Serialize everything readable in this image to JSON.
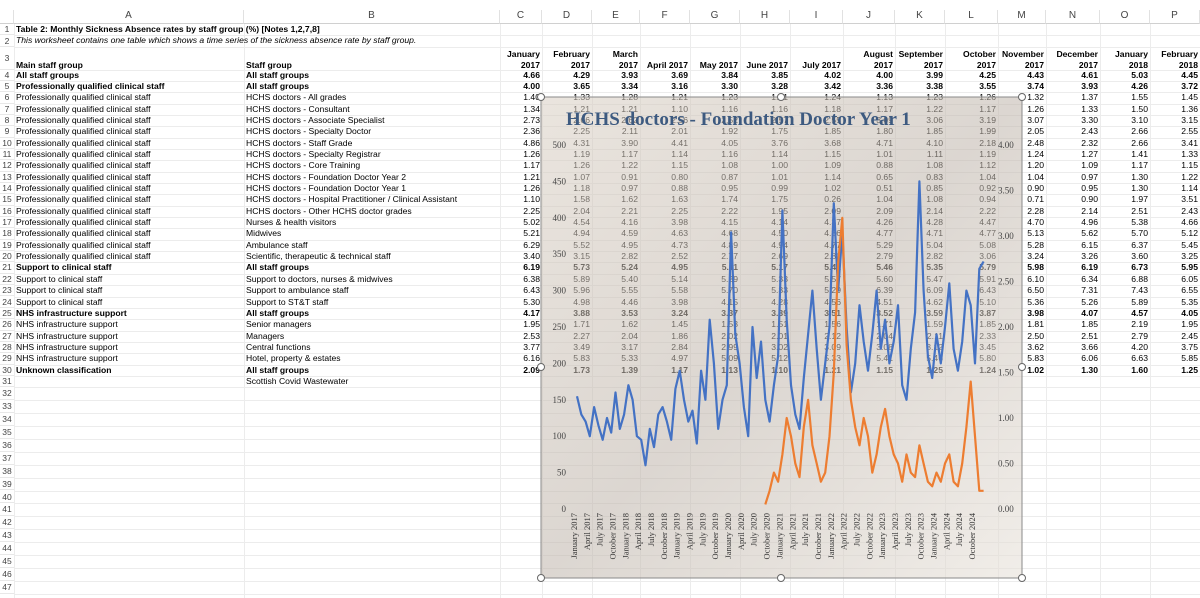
{
  "sheet": {
    "columns": [
      "A",
      "B",
      "C",
      "D",
      "E",
      "F",
      "G",
      "H",
      "I",
      "J",
      "K",
      "L",
      "M",
      "N",
      "O",
      "P"
    ],
    "row_numbers": [
      1,
      2,
      3,
      4,
      5,
      6,
      7,
      8,
      9,
      10,
      11,
      12,
      13,
      14,
      15,
      16,
      17,
      18,
      19,
      20,
      21,
      22,
      23,
      24,
      25,
      26,
      27,
      28,
      29,
      30,
      31,
      32,
      33,
      34,
      35,
      36,
      37,
      38,
      39,
      40,
      41,
      42,
      43,
      44,
      45,
      46,
      47
    ],
    "title": "Table 2: Monthly Sickness Absence rates by staff group (%) [Notes 1,2,7,8]",
    "subtitle": "This worksheet contains one table which shows a time series of the sickness absence rate by staff group.",
    "headers": [
      "Main staff group",
      "Staff group",
      "January 2017",
      "February 2017",
      "March 2017",
      "April 2017",
      "May 2017",
      "June 2017",
      "July 2017",
      "August 2017",
      "September 2017",
      "October 2017",
      "November 2017",
      "December 2017",
      "January 2018",
      "February 2018"
    ],
    "rows": [
      [
        "All staff groups",
        "All staff groups",
        "4.66",
        "4.29",
        "3.93",
        "3.69",
        "3.84",
        "3.85",
        "4.02",
        "4.00",
        "3.99",
        "4.25",
        "4.43",
        "4.61",
        "5.03",
        "4.45"
      ],
      [
        "Professionally qualified clinical staff",
        "All staff groups",
        "4.00",
        "3.65",
        "3.34",
        "3.16",
        "3.30",
        "3.28",
        "3.42",
        "3.36",
        "3.38",
        "3.55",
        "3.74",
        "3.93",
        "4.26",
        "3.72"
      ],
      [
        "Professionally qualified clinical staff",
        "HCHS doctors - All grades",
        "1.40",
        "1.33",
        "1.28",
        "1.21",
        "1.23",
        "1.21",
        "1.24",
        "1.13",
        "1.23",
        "1.26",
        "1.32",
        "1.37",
        "1.55",
        "1.45"
      ],
      [
        "Professionally qualified clinical staff",
        "HCHS doctors - Consultant",
        "1.34",
        "1.21",
        "1.21",
        "1.10",
        "1.16",
        "1.16",
        "1.18",
        "1.17",
        "1.22",
        "1.17",
        "1.26",
        "1.33",
        "1.50",
        "1.36"
      ],
      [
        "Professionally qualified clinical staff",
        "HCHS doctors - Associate Specialist",
        "2.73",
        "2.66",
        "2.62",
        "2.56",
        "2.52",
        "2.57",
        "2.55",
        "3.09",
        "3.06",
        "3.19",
        "3.07",
        "3.30",
        "3.10",
        "3.15"
      ],
      [
        "Professionally qualified clinical staff",
        "HCHS doctors - Specialty Doctor",
        "2.36",
        "2.25",
        "2.11",
        "2.01",
        "1.92",
        "1.75",
        "1.85",
        "1.80",
        "1.85",
        "1.99",
        "2.05",
        "2.43",
        "2.66",
        "2.55"
      ],
      [
        "Professionally qualified clinical staff",
        "HCHS doctors - Staff Grade",
        "4.86",
        "4.31",
        "3.90",
        "4.41",
        "4.05",
        "3.76",
        "3.68",
        "4.71",
        "4.10",
        "2.18",
        "2.48",
        "2.32",
        "2.66",
        "3.41"
      ],
      [
        "Professionally qualified clinical staff",
        "HCHS doctors - Specialty Registrar",
        "1.26",
        "1.19",
        "1.17",
        "1.14",
        "1.16",
        "1.14",
        "1.15",
        "1.01",
        "1.11",
        "1.19",
        "1.24",
        "1.27",
        "1.41",
        "1.33"
      ],
      [
        "Professionally qualified clinical staff",
        "HCHS doctors - Core Training",
        "1.17",
        "1.26",
        "1.22",
        "1.15",
        "1.08",
        "1.00",
        "1.09",
        "0.88",
        "1.08",
        "1.12",
        "1.20",
        "1.09",
        "1.17",
        "1.15"
      ],
      [
        "Professionally qualified clinical staff",
        "HCHS doctors - Foundation Doctor Year 2",
        "1.21",
        "1.07",
        "0.91",
        "0.80",
        "0.87",
        "1.01",
        "1.14",
        "0.65",
        "0.83",
        "1.04",
        "1.04",
        "0.97",
        "1.30",
        "1.22"
      ],
      [
        "Professionally qualified clinical staff",
        "HCHS doctors - Foundation Doctor Year 1",
        "1.26",
        "1.18",
        "0.97",
        "0.88",
        "0.95",
        "0.99",
        "1.02",
        "0.51",
        "0.85",
        "0.92",
        "0.90",
        "0.95",
        "1.30",
        "1.14"
      ],
      [
        "Professionally qualified clinical staff",
        "HCHS doctors - Hospital Practitioner / Clinical Assistant",
        "1.10",
        "1.58",
        "1.62",
        "1.63",
        "1.74",
        "1.75",
        "0.26",
        "1.04",
        "1.08",
        "0.94",
        "0.71",
        "0.90",
        "1.97",
        "3.51"
      ],
      [
        "Professionally qualified clinical staff",
        "HCHS doctors - Other HCHS doctor grades",
        "2.25",
        "2.04",
        "2.21",
        "2.25",
        "2.22",
        "1.95",
        "2.09",
        "2.09",
        "2.14",
        "2.22",
        "2.28",
        "2.14",
        "2.51",
        "2.43"
      ],
      [
        "Professionally qualified clinical staff",
        "Nurses & health visitors",
        "5.02",
        "4.54",
        "4.16",
        "3.98",
        "4.15",
        "4.14",
        "4.37",
        "4.26",
        "4.28",
        "4.47",
        "4.70",
        "4.96",
        "5.38",
        "4.66"
      ],
      [
        "Professionally qualified clinical staff",
        "Midwives",
        "5.21",
        "4.94",
        "4.59",
        "4.63",
        "4.68",
        "4.50",
        "4.86",
        "4.77",
        "4.71",
        "4.77",
        "5.13",
        "5.62",
        "5.70",
        "5.12"
      ],
      [
        "Professionally qualified clinical staff",
        "Ambulance staff",
        "6.29",
        "5.52",
        "4.95",
        "4.73",
        "4.89",
        "4.94",
        "4.77",
        "5.29",
        "5.04",
        "5.08",
        "5.28",
        "6.15",
        "6.37",
        "5.45"
      ],
      [
        "Professionally qualified clinical staff",
        "Scientific, therapeutic & technical staff",
        "3.40",
        "3.15",
        "2.82",
        "2.52",
        "2.77",
        "2.69",
        "2.81",
        "2.79",
        "2.82",
        "3.06",
        "3.24",
        "3.26",
        "3.60",
        "3.25"
      ],
      [
        "Support to clinical staff",
        "All staff groups",
        "6.19",
        "5.73",
        "5.24",
        "4.95",
        "5.11",
        "5.17",
        "5.42",
        "5.46",
        "5.35",
        "5.79",
        "5.98",
        "6.19",
        "6.73",
        "5.95"
      ],
      [
        "Support to clinical staff",
        "Support to doctors, nurses & midwives",
        "6.38",
        "5.89",
        "5.40",
        "5.14",
        "5.29",
        "5.33",
        "5.57",
        "5.60",
        "5.47",
        "5.91",
        "6.10",
        "6.34",
        "6.88",
        "6.05"
      ],
      [
        "Support to clinical staff",
        "Support to ambulance staff",
        "6.43",
        "5.96",
        "5.55",
        "5.58",
        "5.70",
        "5.33",
        "5.29",
        "6.39",
        "6.09",
        "6.43",
        "6.50",
        "7.31",
        "7.43",
        "6.55"
      ],
      [
        "Support to clinical staff",
        "Support to ST&T staff",
        "5.30",
        "4.98",
        "4.46",
        "3.98",
        "4.15",
        "4.28",
        "4.56",
        "4.51",
        "4.62",
        "5.10",
        "5.36",
        "5.26",
        "5.89",
        "5.35"
      ],
      [
        "NHS infrastructure support",
        "All staff groups",
        "4.17",
        "3.88",
        "3.53",
        "3.24",
        "3.37",
        "3.39",
        "3.51",
        "3.52",
        "3.59",
        "3.87",
        "3.98",
        "4.07",
        "4.57",
        "4.05"
      ],
      [
        "NHS infrastructure support",
        "Senior managers",
        "1.95",
        "1.71",
        "1.62",
        "1.45",
        "1.53",
        "1.51",
        "1.56",
        "1.71",
        "1.59",
        "1.85",
        "1.81",
        "1.85",
        "2.19",
        "1.95"
      ],
      [
        "NHS infrastructure support",
        "Managers",
        "2.53",
        "2.27",
        "2.04",
        "1.86",
        "2.02",
        "2.01",
        "2.12",
        "2.04",
        "2.11",
        "2.33",
        "2.50",
        "2.51",
        "2.79",
        "2.45"
      ],
      [
        "NHS infrastructure support",
        "Central functions",
        "3.77",
        "3.49",
        "3.17",
        "2.84",
        "2.99",
        "3.02",
        "3.09",
        "3.08",
        "3.12",
        "3.45",
        "3.62",
        "3.66",
        "4.20",
        "3.75"
      ],
      [
        "NHS infrastructure support",
        "Hotel, property & estates",
        "6.16",
        "5.83",
        "5.33",
        "4.97",
        "5.09",
        "5.12",
        "5.33",
        "5.41",
        "5.46",
        "5.80",
        "5.83",
        "6.06",
        "6.63",
        "5.85"
      ],
      [
        "Unknown classification",
        "All staff groups",
        "2.09",
        "1.73",
        "1.39",
        "1.17",
        "1.13",
        "1.10",
        "1.21",
        "1.15",
        "1.25",
        "1.24",
        "1.02",
        "1.30",
        "1.60",
        "1.25"
      ]
    ],
    "note": "Scottish Covid Wastewater"
  },
  "chart_data": {
    "type": "line",
    "title": "HCHS doctors - Foundation Doctor Year 1",
    "categories": [
      "January 2017",
      null,
      null,
      "April 2017",
      null,
      null,
      "July 2017",
      null,
      null,
      "October 2017",
      null,
      null,
      "January 2018",
      null,
      null,
      "April 2018",
      null,
      null,
      "July 2018",
      null,
      null,
      "October 2018",
      null,
      null,
      "January 2019",
      null,
      null,
      "April 2019",
      null,
      null,
      "July 2019",
      null,
      null,
      "October 2019",
      null,
      null,
      "January 2020",
      null,
      null,
      "April 2020",
      null,
      null,
      "July 2020",
      null,
      null,
      "October 2020",
      null,
      null,
      "January 2021",
      null,
      null,
      "April 2021",
      null,
      null,
      "July 2021",
      null,
      null,
      "October 2021",
      null,
      null,
      "January 2022",
      null,
      null,
      "April 2022",
      null,
      null,
      "July 2022",
      null,
      null,
      "October 2022",
      null,
      null,
      "January 2023",
      null,
      null,
      "April 2023",
      null,
      null,
      "July 2023",
      null,
      null,
      "October 2023",
      null,
      null,
      "January 2024",
      null,
      null,
      "April 2024",
      null,
      null,
      "July 2024",
      null,
      null,
      "October 2024",
      null,
      null
    ],
    "series": [
      {
        "color": "#4472c4",
        "values": [
          155,
          130,
          120,
          100,
          140,
          115,
          95,
          125,
          105,
          160,
          110,
          130,
          170,
          150,
          100,
          95,
          60,
          110,
          85,
          130,
          140,
          120,
          95,
          165,
          190,
          150,
          120,
          135,
          90,
          190,
          150,
          260,
          200,
          110,
          150,
          170,
          380,
          240,
          200,
          140,
          100,
          250,
          180,
          230,
          150,
          120,
          170,
          210,
          410,
          260,
          170,
          130,
          110,
          180,
          240,
          300,
          220,
          150,
          200,
          250,
          420,
          300,
          380,
          250,
          160,
          200,
          280,
          230,
          190,
          240,
          300,
          220,
          260,
          200,
          230,
          280,
          170,
          150,
          220,
          270,
          450,
          300,
          210,
          180,
          240,
          200,
          250,
          310,
          220,
          190,
          230,
          300,
          280,
          200,
          330,
          340
        ]
      },
      {
        "color": "#ed7d31",
        "axis": "y2",
        "values": [
          null,
          null,
          null,
          null,
          null,
          null,
          null,
          null,
          null,
          null,
          null,
          null,
          null,
          null,
          null,
          null,
          null,
          null,
          null,
          null,
          null,
          null,
          null,
          null,
          null,
          null,
          null,
          null,
          null,
          null,
          null,
          null,
          null,
          null,
          null,
          null,
          null,
          null,
          null,
          null,
          null,
          null,
          null,
          null,
          0.05,
          0.2,
          0.4,
          0.3,
          0.6,
          1.0,
          0.8,
          0.5,
          0.35,
          0.9,
          1.2,
          0.7,
          0.5,
          0.3,
          0.4,
          0.8,
          1.5,
          2.7,
          3.2,
          1.8,
          1.2,
          0.9,
          0.7,
          1.0,
          0.8,
          0.4,
          0.6,
          0.9,
          1.1,
          0.8,
          0.6,
          0.5,
          0.3,
          0.6,
          0.4,
          0.35,
          0.7,
          0.5,
          0.3,
          0.25,
          0.4,
          0.3,
          0.5,
          0.6,
          0.3,
          0.25,
          0.5,
          0.9,
          1.4,
          0.8,
          0.2,
          0.2
        ]
      }
    ],
    "ylim": [
      0,
      500
    ],
    "yticks": [
      0,
      50,
      100,
      150,
      200,
      250,
      300,
      350,
      400,
      450,
      500
    ],
    "y2lim": [
      0,
      4
    ],
    "y2ticks": [
      {
        "value": 0,
        "label": "0.00"
      },
      {
        "value": 0.5,
        "label": "0.50"
      },
      {
        "value": 1,
        "label": "1.00"
      },
      {
        "value": 1.5,
        "label": "1.50"
      },
      {
        "value": 2,
        "label": "2.00"
      },
      {
        "value": 2.5,
        "label": "2.50"
      },
      {
        "value": 3,
        "label": "3.00"
      },
      {
        "value": 3.5,
        "label": "3.50"
      },
      {
        "value": 4,
        "label": "4.00"
      }
    ]
  }
}
